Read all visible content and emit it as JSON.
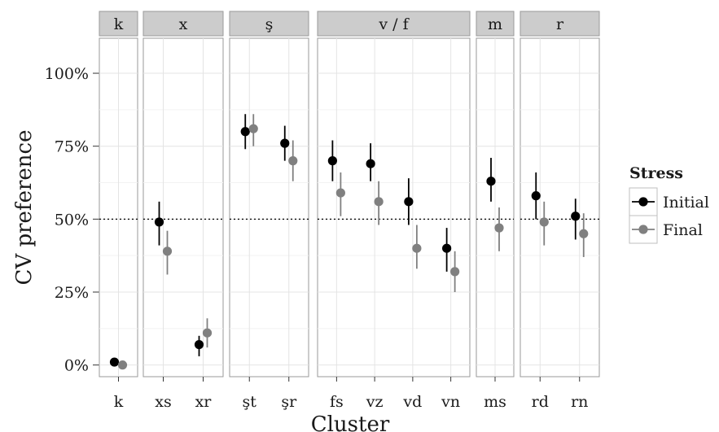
{
  "chart_data": {
    "type": "scatter",
    "subtype": "faceted point-range",
    "xlabel": "Cluster",
    "ylabel": "CV preference",
    "ylim": [
      -0.04,
      1.12
    ],
    "y_ticks": [
      0,
      0.25,
      0.5,
      0.75,
      1.0
    ],
    "y_tick_labels": [
      "0%",
      "25%",
      "50%",
      "75%",
      "100%"
    ],
    "reference_line": {
      "y": 0.5,
      "style": "dotted"
    },
    "grid": true,
    "legend": {
      "title": "Stress",
      "position": "right",
      "entries": [
        {
          "name": "Initial",
          "color": "#000000"
        },
        {
          "name": "Final",
          "color": "#808080"
        }
      ]
    },
    "facets": [
      {
        "label": "k",
        "clusters": [
          {
            "name": "k",
            "initial": {
              "y": 0.01,
              "lo": 0.01,
              "hi": 0.01
            },
            "final": {
              "y": 0.0,
              "lo": 0.0,
              "hi": 0.0
            }
          }
        ]
      },
      {
        "label": "x",
        "clusters": [
          {
            "name": "xs",
            "initial": {
              "y": 0.49,
              "lo": 0.41,
              "hi": 0.56
            },
            "final": {
              "y": 0.39,
              "lo": 0.31,
              "hi": 0.46
            }
          },
          {
            "name": "xr",
            "initial": {
              "y": 0.07,
              "lo": 0.03,
              "hi": 0.1
            },
            "final": {
              "y": 0.11,
              "lo": 0.06,
              "hi": 0.16
            }
          }
        ]
      },
      {
        "label": "ş",
        "clusters": [
          {
            "name": "şt",
            "initial": {
              "y": 0.8,
              "lo": 0.74,
              "hi": 0.86
            },
            "final": {
              "y": 0.81,
              "lo": 0.75,
              "hi": 0.86
            }
          },
          {
            "name": "şr",
            "initial": {
              "y": 0.76,
              "lo": 0.7,
              "hi": 0.82
            },
            "final": {
              "y": 0.7,
              "lo": 0.63,
              "hi": 0.77
            }
          }
        ]
      },
      {
        "label": "v / f",
        "clusters": [
          {
            "name": "fs",
            "initial": {
              "y": 0.7,
              "lo": 0.63,
              "hi": 0.77
            },
            "final": {
              "y": 0.59,
              "lo": 0.51,
              "hi": 0.66
            }
          },
          {
            "name": "vz",
            "initial": {
              "y": 0.69,
              "lo": 0.63,
              "hi": 0.76
            },
            "final": {
              "y": 0.56,
              "lo": 0.48,
              "hi": 0.63
            }
          },
          {
            "name": "vd",
            "initial": {
              "y": 0.56,
              "lo": 0.48,
              "hi": 0.64
            },
            "final": {
              "y": 0.4,
              "lo": 0.33,
              "hi": 0.48
            }
          },
          {
            "name": "vn",
            "initial": {
              "y": 0.4,
              "lo": 0.32,
              "hi": 0.47
            },
            "final": {
              "y": 0.32,
              "lo": 0.25,
              "hi": 0.39
            }
          }
        ]
      },
      {
        "label": "m",
        "clusters": [
          {
            "name": "ms",
            "initial": {
              "y": 0.63,
              "lo": 0.56,
              "hi": 0.71
            },
            "final": {
              "y": 0.47,
              "lo": 0.39,
              "hi": 0.54
            }
          }
        ]
      },
      {
        "label": "r",
        "clusters": [
          {
            "name": "rd",
            "initial": {
              "y": 0.58,
              "lo": 0.5,
              "hi": 0.66
            },
            "final": {
              "y": 0.49,
              "lo": 0.41,
              "hi": 0.56
            }
          },
          {
            "name": "rn",
            "initial": {
              "y": 0.51,
              "lo": 0.43,
              "hi": 0.57
            },
            "final": {
              "y": 0.45,
              "lo": 0.37,
              "hi": 0.52
            }
          }
        ]
      }
    ]
  }
}
